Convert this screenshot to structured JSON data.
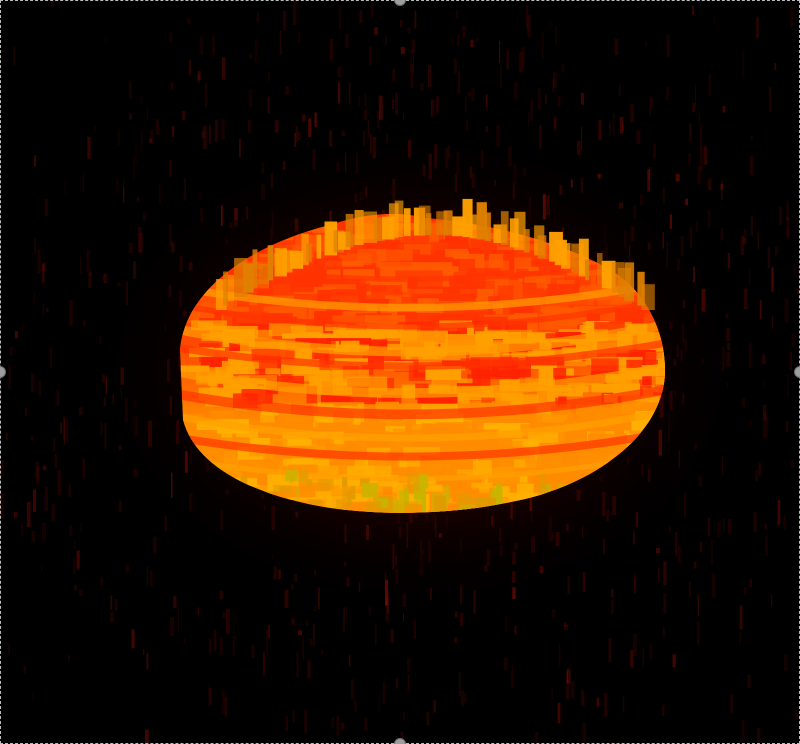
{
  "viewport": {
    "background": "#000000",
    "description_free": true
  },
  "volume_render": {
    "colormap": [
      "#000000",
      "#3a0000",
      "#8b0000",
      "#ff1a00",
      "#ff7a00",
      "#ffb000",
      "#d8c000"
    ],
    "noise_color": "#7a0a00",
    "surface_low": "#ff8c00",
    "surface_mid": "#ff3300",
    "surface_high": "#ffa000",
    "rim_color": "#c8b400"
  },
  "selection": {
    "border_color": "#bdbdbd",
    "handle_color": "#9e9e9e",
    "handles": [
      "top",
      "left",
      "right",
      "bottom"
    ]
  }
}
